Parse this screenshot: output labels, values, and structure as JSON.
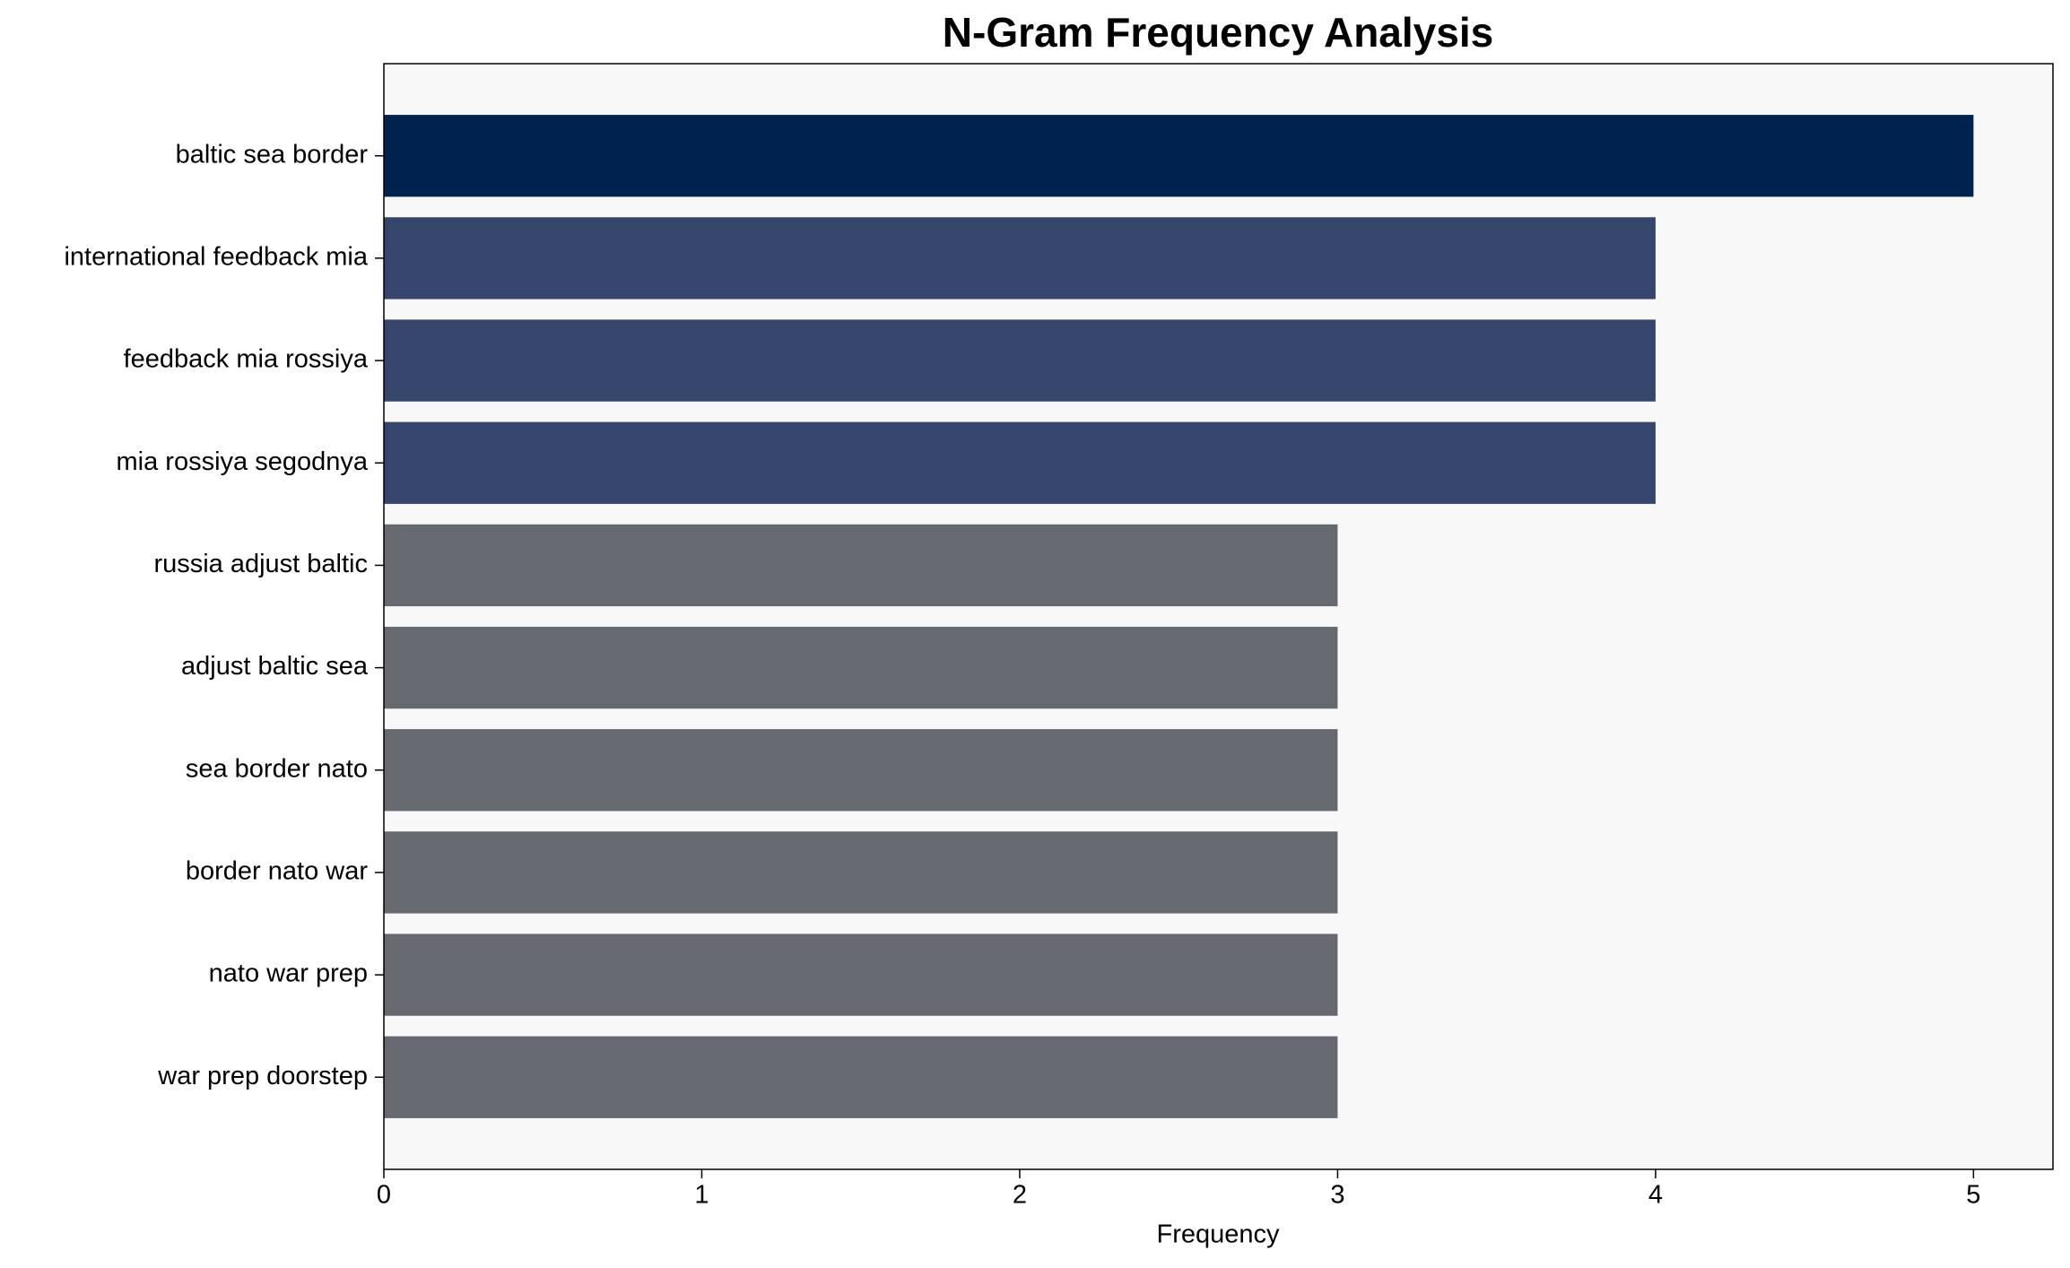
{
  "chart_data": {
    "type": "bar",
    "orientation": "horizontal",
    "title": "N-Gram Frequency Analysis",
    "xlabel": "Frequency",
    "categories": [
      "baltic sea border",
      "international feedback mia",
      "feedback mia rossiya",
      "mia rossiya segodnya",
      "russia adjust baltic",
      "adjust baltic sea",
      "sea border nato",
      "border nato war",
      "nato war prep",
      "war prep doorstep"
    ],
    "values": [
      5,
      4,
      4,
      4,
      3,
      3,
      3,
      3,
      3,
      3
    ],
    "colors": [
      "#00224e",
      "#35456c",
      "#35456c",
      "#35456c",
      "#666970",
      "#666970",
      "#666970",
      "#666970",
      "#666970",
      "#666970"
    ],
    "xlim": [
      0,
      5.25
    ],
    "xticks": [
      0,
      1,
      2,
      3,
      4,
      5
    ],
    "grid": false
  }
}
